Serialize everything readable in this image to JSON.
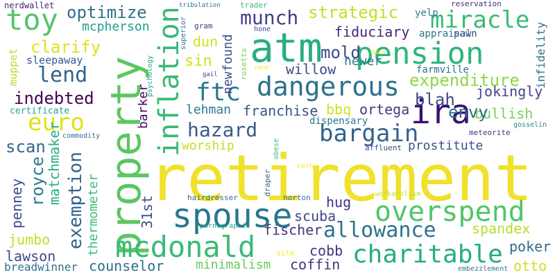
{
  "words": [
    {
      "t": "retirement",
      "c": "#f0e12a"
    },
    {
      "t": "property",
      "c": "#5cc661"
    },
    {
      "t": "atm",
      "c": "#28ae80"
    },
    {
      "t": "pension",
      "c": "#2fb47c"
    },
    {
      "t": "spouse",
      "c": "#2a768e"
    },
    {
      "t": "overspend",
      "c": "#52c569"
    },
    {
      "t": "mcdonald",
      "c": "#3aba76"
    },
    {
      "t": "inflation",
      "c": "#38b977"
    },
    {
      "t": "dangerous",
      "c": "#2d708e"
    },
    {
      "t": "ira",
      "c": "#3b0f70"
    },
    {
      "t": "ftc",
      "c": "#2a788e"
    },
    {
      "t": "bargain",
      "c": "#33638d"
    },
    {
      "t": "charitable",
      "c": "#25ac82"
    },
    {
      "t": "allowance",
      "c": "#2c728e"
    },
    {
      "t": "toy",
      "c": "#52c569"
    },
    {
      "t": "miracle",
      "c": "#3aba76"
    },
    {
      "t": "euro",
      "c": "#dde318"
    },
    {
      "t": "hazard",
      "c": "#375a8c"
    },
    {
      "t": "exemption",
      "c": "#33638d"
    },
    {
      "t": "munch",
      "c": "#433e85"
    },
    {
      "t": "lend",
      "c": "#33638d"
    },
    {
      "t": "expenditure",
      "c": "#8fd744"
    },
    {
      "t": "strategic",
      "c": "#c2df23"
    },
    {
      "t": "optimize",
      "c": "#2c728e"
    },
    {
      "t": "clarify",
      "c": "#dde318"
    },
    {
      "t": "indebted",
      "c": "#440154"
    },
    {
      "t": "fiduciary",
      "c": "#482677"
    },
    {
      "t": "mold",
      "c": "#404688"
    },
    {
      "t": "willow",
      "c": "#3e4a89"
    },
    {
      "t": "blah",
      "c": "#3e4989"
    },
    {
      "t": "jokingly",
      "c": "#414487"
    },
    {
      "t": "bullish",
      "c": "#7ad151"
    },
    {
      "t": "envy",
      "c": "#2d708e"
    },
    {
      "t": "franchise",
      "c": "#3b528b"
    },
    {
      "t": "bbq",
      "c": "#d0e11c"
    },
    {
      "t": "ortega",
      "c": "#453781"
    },
    {
      "t": "lehman",
      "c": "#2a788e"
    },
    {
      "t": "prostitute",
      "c": "#3b528b"
    },
    {
      "t": "scan",
      "c": "#31688e"
    },
    {
      "t": "worship",
      "c": "#c2df23"
    },
    {
      "t": "mcpherson",
      "c": "#1f9e89"
    },
    {
      "t": "newfound",
      "c": "#3e4a89"
    },
    {
      "t": "dun",
      "c": "#d0e11c"
    },
    {
      "t": "sin",
      "c": "#d0e11c"
    },
    {
      "t": "newer",
      "c": "#2a788e"
    },
    {
      "t": "royce",
      "c": "#2a788e"
    },
    {
      "t": "matchmaker",
      "c": "#2ab07f"
    },
    {
      "t": "hug",
      "c": "#472d7b"
    },
    {
      "t": "scuba",
      "c": "#404688"
    },
    {
      "t": "fischer",
      "c": "#46327e"
    },
    {
      "t": "cobb",
      "c": "#46327e"
    },
    {
      "t": "poker",
      "c": "#31688e"
    },
    {
      "t": "spandex",
      "c": "#b5de2b"
    },
    {
      "t": "coffin",
      "c": "#46327e"
    },
    {
      "t": "counselor",
      "c": "#2c718e"
    },
    {
      "t": "minimalism",
      "c": "#65cb5e"
    },
    {
      "t": "otto",
      "c": "#d0e11c"
    },
    {
      "t": "lawson",
      "c": "#3e4989"
    },
    {
      "t": "breadwinner",
      "c": "#2c728e"
    },
    {
      "t": "jumbo",
      "c": "#c2df23"
    },
    {
      "t": "penney",
      "c": "#3e4989"
    },
    {
      "t": "thermometer",
      "c": "#3aba76"
    },
    {
      "t": "31st",
      "c": "#3e4989"
    },
    {
      "t": "barker",
      "c": "#46085c"
    },
    {
      "t": "dispensary",
      "c": "#2a788e"
    },
    {
      "t": "pawn",
      "c": "#3e4a89"
    },
    {
      "t": "yelp",
      "c": "#2a788e"
    },
    {
      "t": "appraisal",
      "c": "#2d708e"
    },
    {
      "t": "infidelity",
      "c": "#2c718e"
    },
    {
      "t": "farmville",
      "c": "#2c718e"
    },
    {
      "t": "certificate",
      "c": "#22a884"
    },
    {
      "t": "sleepaway",
      "c": "#38588c"
    },
    {
      "t": "muppet",
      "c": "#b5de2b"
    },
    {
      "t": "nerdwallet",
      "c": "#482173"
    },
    {
      "t": "tribulation",
      "c": "#2c718e"
    },
    {
      "t": "trader",
      "c": "#3aba76"
    },
    {
      "t": "reservation",
      "c": "#472d7b"
    },
    {
      "t": "superior",
      "c": "#2c718e"
    },
    {
      "t": "gram",
      "c": "#443983"
    },
    {
      "t": "hone",
      "c": "#3e4989"
    },
    {
      "t": "rosetta",
      "c": "#7ad151"
    },
    {
      "t": "dazs",
      "c": "#fde725"
    },
    {
      "t": "zane",
      "c": "#fde725"
    },
    {
      "t": "psychology",
      "c": "#20a386"
    },
    {
      "t": "gail",
      "c": "#3e4989"
    },
    {
      "t": "commodity",
      "c": "#2c718e"
    },
    {
      "t": "meteorite",
      "c": "#453781"
    },
    {
      "t": "gosselin",
      "c": "#23888e"
    },
    {
      "t": "obese",
      "c": "#38b977"
    },
    {
      "t": "affluent",
      "c": "#3e4a89"
    },
    {
      "t": "roth",
      "c": "#fde725"
    },
    {
      "t": "draper",
      "c": "#31688e"
    },
    {
      "t": "workaholism",
      "c": "#c2df23"
    },
    {
      "t": "hairdresser",
      "c": "#31688e"
    },
    {
      "t": "norton",
      "c": "#2a788e"
    },
    {
      "t": "pornographic",
      "c": "#20a386"
    },
    {
      "t": "silk",
      "c": "#fde725"
    },
    {
      "t": "embezzlement",
      "c": "#2a788e"
    }
  ]
}
